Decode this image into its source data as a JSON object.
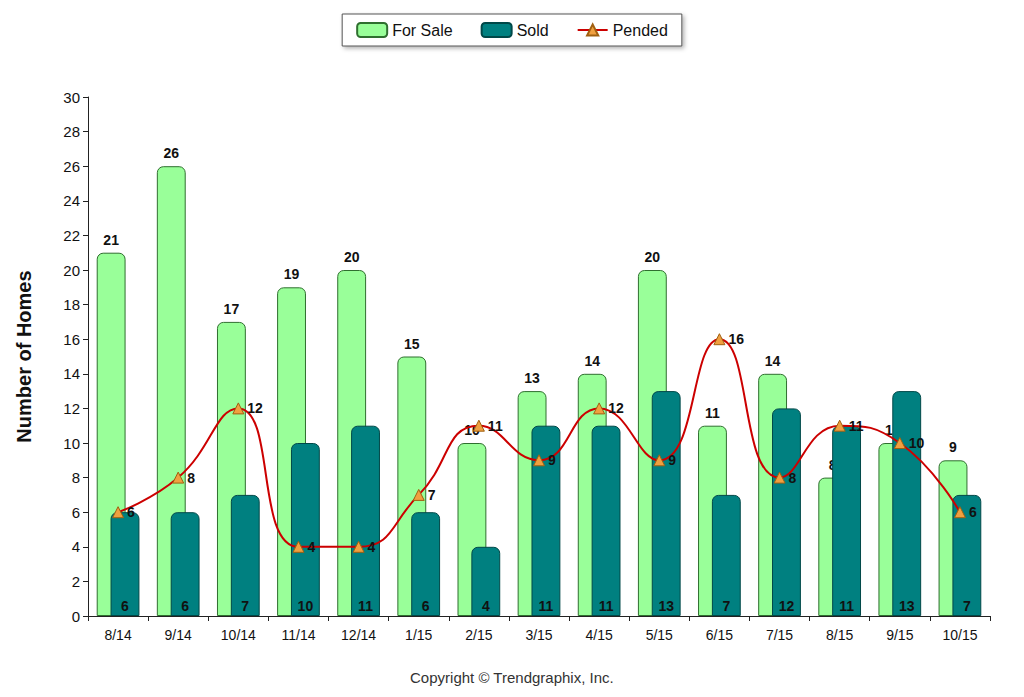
{
  "chart_data": {
    "type": "bar",
    "ylabel": "Number of Homes",
    "annotations": [
      "Copyright © Trendgraphix, Inc."
    ],
    "categories": [
      "8/14",
      "9/14",
      "10/14",
      "11/14",
      "12/14",
      "1/15",
      "2/15",
      "3/15",
      "4/15",
      "5/15",
      "6/15",
      "7/15",
      "8/15",
      "9/15",
      "10/15"
    ],
    "series": [
      {
        "name": "For Sale",
        "type": "bar",
        "color": "#99ff99",
        "values": [
          21,
          26,
          17,
          19,
          20,
          15,
          10,
          13,
          14,
          20,
          11,
          14,
          8,
          10,
          9
        ]
      },
      {
        "name": "Sold",
        "type": "bar",
        "color": "#008080",
        "values": [
          6,
          6,
          7,
          10,
          11,
          6,
          4,
          11,
          11,
          13,
          7,
          12,
          11,
          13,
          7
        ]
      },
      {
        "name": "Pended",
        "type": "line",
        "color": "#cc0000",
        "marker": "triangle",
        "values": [
          6,
          8,
          12,
          4,
          4,
          7,
          11,
          9,
          12,
          9,
          16,
          8,
          11,
          10,
          6
        ]
      }
    ],
    "ylim": [
      0,
      30
    ],
    "yticks": [
      0,
      2,
      4,
      6,
      8,
      10,
      12,
      14,
      16,
      18,
      20,
      22,
      24,
      26,
      28,
      30
    ],
    "grid": false,
    "legend": "top",
    "data_labels": true
  }
}
